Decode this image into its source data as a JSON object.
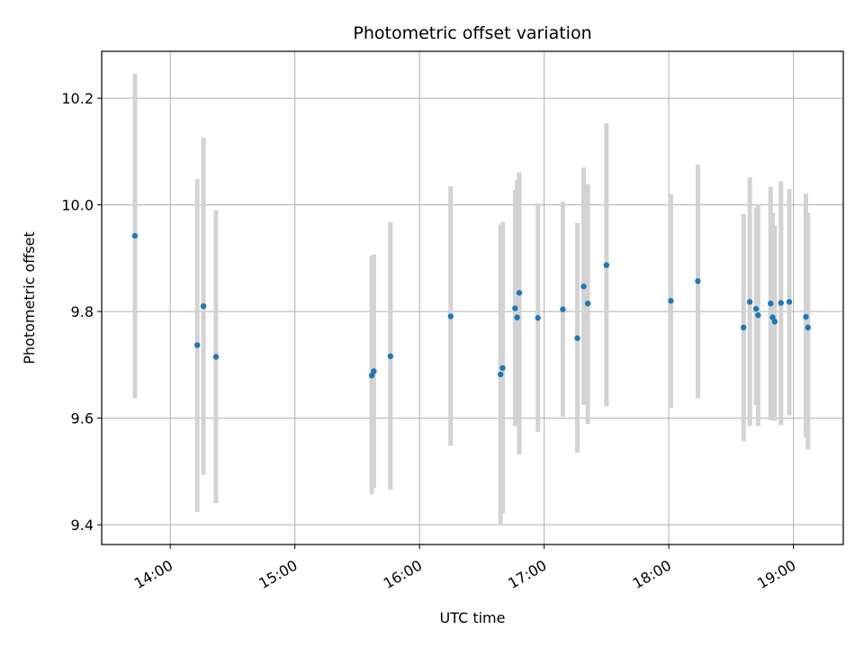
{
  "chart_data": {
    "type": "scatter",
    "title": "Photometric offset variation",
    "xlabel": "UTC time",
    "ylabel": "Photometric offset",
    "x_axis_format": "HH:MM",
    "x_ticks": [
      "14:00",
      "15:00",
      "16:00",
      "17:00",
      "18:00",
      "19:00"
    ],
    "y_ticks": [
      9.4,
      9.6,
      9.8,
      10.0,
      10.2
    ],
    "y_tick_labels": [
      "9.4",
      "9.6",
      "9.8",
      "10.0",
      "10.2"
    ],
    "xlim": [
      "13:27",
      "19:24"
    ],
    "ylim": [
      9.363,
      10.288
    ],
    "grid": true,
    "marker_color": "#1f77b4",
    "errorbar_color": "#d3d3d3",
    "points": [
      {
        "x": "13:43",
        "y": 9.942,
        "lo": 9.637,
        "hi": 10.246
      },
      {
        "x": "14:13",
        "y": 9.737,
        "lo": 9.424,
        "hi": 10.048
      },
      {
        "x": "14:16",
        "y": 9.81,
        "lo": 9.494,
        "hi": 10.126
      },
      {
        "x": "14:22",
        "y": 9.715,
        "lo": 9.44,
        "hi": 9.99
      },
      {
        "x": "15:37",
        "y": 9.68,
        "lo": 9.457,
        "hi": 9.904
      },
      {
        "x": "15:38",
        "y": 9.688,
        "lo": 9.469,
        "hi": 9.907
      },
      {
        "x": "15:46",
        "y": 9.716,
        "lo": 9.466,
        "hi": 9.968
      },
      {
        "x": "16:15",
        "y": 9.791,
        "lo": 9.548,
        "hi": 10.035
      },
      {
        "x": "16:39",
        "y": 9.682,
        "lo": 9.399,
        "hi": 9.963
      },
      {
        "x": "16:40",
        "y": 9.694,
        "lo": 9.422,
        "hi": 9.968
      },
      {
        "x": "16:46",
        "y": 9.806,
        "lo": 9.585,
        "hi": 10.028
      },
      {
        "x": "16:47",
        "y": 9.789,
        "lo": 9.602,
        "hi": 10.047
      },
      {
        "x": "16:48",
        "y": 9.835,
        "lo": 9.532,
        "hi": 10.061
      },
      {
        "x": "16:57",
        "y": 9.788,
        "lo": 9.574,
        "hi": 10.003
      },
      {
        "x": "17:09",
        "y": 9.804,
        "lo": 9.603,
        "hi": 10.006
      },
      {
        "x": "17:16",
        "y": 9.75,
        "lo": 9.535,
        "hi": 9.966
      },
      {
        "x": "17:19",
        "y": 9.847,
        "lo": 9.625,
        "hi": 10.07
      },
      {
        "x": "17:21",
        "y": 9.815,
        "lo": 9.589,
        "hi": 10.039
      },
      {
        "x": "17:30",
        "y": 9.887,
        "lo": 9.622,
        "hi": 10.153
      },
      {
        "x": "18:01",
        "y": 9.82,
        "lo": 9.619,
        "hi": 10.02
      },
      {
        "x": "18:14",
        "y": 9.857,
        "lo": 9.637,
        "hi": 10.076
      },
      {
        "x": "18:36",
        "y": 9.77,
        "lo": 9.557,
        "hi": 9.983
      },
      {
        "x": "18:39",
        "y": 9.818,
        "lo": 9.585,
        "hi": 10.052
      },
      {
        "x": "18:42",
        "y": 9.805,
        "lo": 9.625,
        "hi": 9.995
      },
      {
        "x": "18:43",
        "y": 9.793,
        "lo": 9.585,
        "hi": 10.001
      },
      {
        "x": "18:49",
        "y": 9.815,
        "lo": 9.596,
        "hi": 10.034
      },
      {
        "x": "18:50",
        "y": 9.789,
        "lo": 9.596,
        "hi": 9.985
      },
      {
        "x": "18:51",
        "y": 9.781,
        "lo": 9.595,
        "hi": 9.961
      },
      {
        "x": "18:54",
        "y": 9.816,
        "lo": 9.587,
        "hi": 10.044
      },
      {
        "x": "18:58",
        "y": 9.818,
        "lo": 9.605,
        "hi": 10.03
      },
      {
        "x": "19:06",
        "y": 9.79,
        "lo": 9.564,
        "hi": 10.021
      },
      {
        "x": "19:07",
        "y": 9.77,
        "lo": 9.541,
        "hi": 9.985
      }
    ]
  }
}
